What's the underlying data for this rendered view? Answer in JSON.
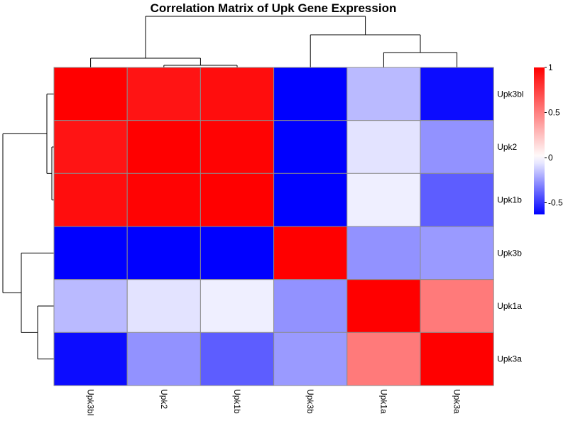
{
  "chart_data": {
    "type": "heatmap",
    "title": "Correlation Matrix of Upk Gene Expression",
    "rows": [
      "Upk3bl",
      "Upk2",
      "Upk1b",
      "Upk3b",
      "Upk1a",
      "Upk3a"
    ],
    "columns": [
      "Upk3bl",
      "Upk2",
      "Upk1b",
      "Upk3b",
      "Upk1a",
      "Upk3a"
    ],
    "values": [
      [
        1.0,
        0.92,
        0.95,
        -0.63,
        -0.17,
        -0.6
      ],
      [
        0.92,
        1.0,
        0.99,
        -0.63,
        -0.07,
        -0.27
      ],
      [
        0.95,
        0.99,
        1.0,
        -0.63,
        -0.04,
        -0.4
      ],
      [
        -0.63,
        -0.63,
        -0.63,
        1.0,
        -0.27,
        -0.25
      ],
      [
        -0.17,
        -0.07,
        -0.04,
        -0.27,
        1.0,
        0.52
      ],
      [
        -0.6,
        -0.27,
        -0.4,
        -0.25,
        0.52,
        1.0
      ]
    ],
    "color_scale": {
      "low": "#0000ff",
      "mid": "#ffffff",
      "high": "#ff0000",
      "min": -0.63,
      "max": 1.0,
      "legend_ticks": [
        "1",
        "0.5",
        "0",
        "-0.5"
      ],
      "legend_tick_values": [
        1,
        0.5,
        0,
        -0.5
      ]
    },
    "row_dendrogram": [
      [
        0,
        1,
        2
      ],
      [
        3,
        [
          4,
          5
        ]
      ]
    ],
    "column_dendrogram": [
      [
        0,
        [
          1,
          2
        ]
      ],
      [
        3,
        [
          4,
          5
        ]
      ]
    ],
    "legend_position": "right",
    "grid": true
  }
}
